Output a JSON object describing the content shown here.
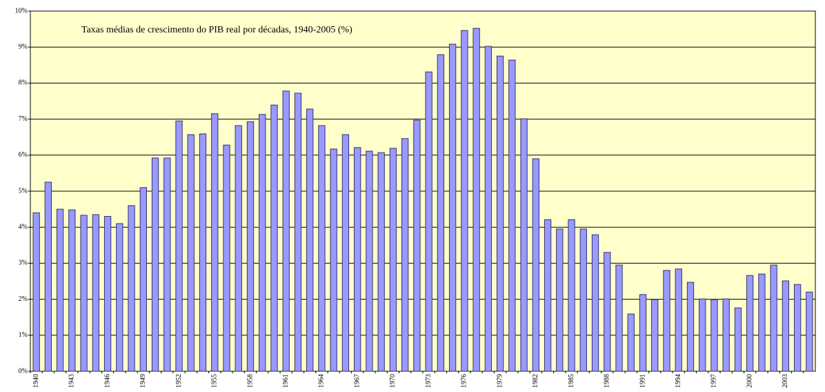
{
  "chart_data": {
    "type": "bar",
    "title": "Taxas médias de crescimento do PIB real por décadas, 1940-2005 (%)",
    "categories": [
      "1940",
      null,
      null,
      "1943",
      null,
      null,
      "1946",
      null,
      null,
      "1949",
      null,
      null,
      "1952",
      null,
      null,
      "1955",
      null,
      null,
      "1958",
      null,
      null,
      "1961",
      null,
      null,
      "1964",
      null,
      null,
      "1967",
      null,
      null,
      "1970",
      null,
      null,
      "1973",
      null,
      null,
      "1976",
      null,
      null,
      "1979",
      null,
      null,
      "1982",
      null,
      null,
      "1985",
      null,
      null,
      "1988",
      null,
      null,
      "1991",
      null,
      null,
      "1994",
      null,
      null,
      "1997",
      null,
      null,
      "2000",
      null,
      null,
      "2003",
      null,
      null
    ],
    "values": [
      4.4,
      5.25,
      4.5,
      4.48,
      4.33,
      4.35,
      4.3,
      4.1,
      4.6,
      5.1,
      5.92,
      5.92,
      6.95,
      6.57,
      6.59,
      7.15,
      6.28,
      6.82,
      6.93,
      7.13,
      7.39,
      7.78,
      7.72,
      7.28,
      6.82,
      6.17,
      6.57,
      6.21,
      6.11,
      6.07,
      6.19,
      6.46,
      6.97,
      8.31,
      8.79,
      9.08,
      9.46,
      9.52,
      9.02,
      8.75,
      8.64,
      7.01,
      5.9,
      4.21,
      3.95,
      4.21,
      3.95,
      3.79,
      3.3,
      2.95,
      1.59,
      2.13,
      1.99,
      2.8,
      2.84,
      2.47,
      2.01,
      1.99,
      2.01,
      1.76,
      2.66,
      2.7,
      2.95,
      2.51,
      2.41,
      2.2
    ],
    "color": "#9999ff",
    "ylim": [
      0,
      10
    ],
    "yticks": [
      {
        "value": 0,
        "label": "0%"
      },
      {
        "value": 1,
        "label": "1%"
      },
      {
        "value": 2,
        "label": "2%"
      },
      {
        "value": 3,
        "label": "3%"
      },
      {
        "value": 4,
        "label": "4%"
      },
      {
        "value": 5,
        "label": "5%"
      },
      {
        "value": 6,
        "label": "6%"
      },
      {
        "value": 7,
        "label": "7%"
      },
      {
        "value": 8,
        "label": "8%"
      },
      {
        "value": 9,
        "label": "9%"
      },
      {
        "value": 10,
        "label": "10%"
      }
    ],
    "grid": true
  }
}
